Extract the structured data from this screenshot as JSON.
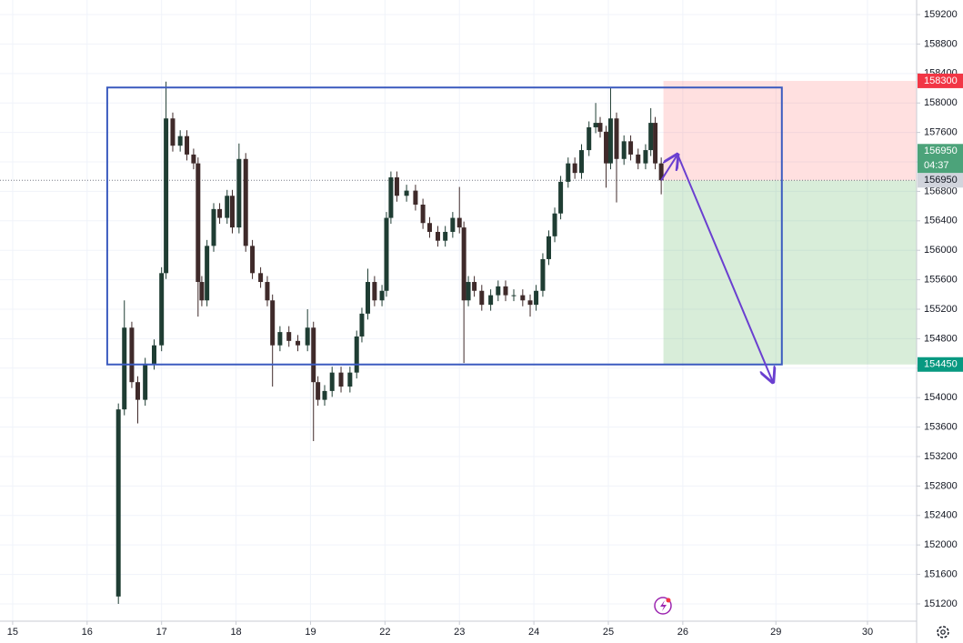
{
  "chart_data": {
    "type": "candlestick",
    "x": [
      1.42,
      1.5,
      1.6,
      1.68,
      1.78,
      1.9,
      2.0,
      2.06,
      2.15,
      2.25,
      2.34,
      2.43,
      2.49,
      2.54,
      2.61,
      2.7,
      2.78,
      2.88,
      2.95,
      3.04,
      3.13,
      3.22,
      3.33,
      3.42,
      3.49,
      3.59,
      3.71,
      3.83,
      3.96,
      4.04,
      4.1,
      4.19,
      4.29,
      4.41,
      4.53,
      4.62,
      4.69,
      4.77,
      4.86,
      4.96,
      5.02,
      5.08,
      5.16,
      5.29,
      5.41,
      5.51,
      5.6,
      5.71,
      5.81,
      5.91,
      6.0,
      6.06,
      6.12,
      6.2,
      6.3,
      6.42,
      6.52,
      6.62,
      6.73,
      6.85,
      6.95,
      7.03,
      7.12,
      7.2,
      7.28,
      7.36,
      7.46,
      7.55,
      7.64,
      7.74,
      7.83,
      7.89,
      7.97,
      8.03,
      8.11,
      8.21,
      8.3,
      8.4,
      8.5,
      8.57,
      8.63,
      8.71
    ],
    "open": [
      151300,
      153840,
      154950,
      154210,
      153970,
      154460,
      154710,
      155690,
      157790,
      157420,
      157550,
      157300,
      157180,
      155570,
      155320,
      156060,
      156560,
      156440,
      156740,
      156310,
      157240,
      156060,
      155690,
      155570,
      155320,
      154710,
      154890,
      154770,
      154710,
      154950,
      154210,
      153970,
      154090,
      154340,
      154150,
      154340,
      154830,
      155140,
      155570,
      155320,
      155450,
      156440,
      156990,
      156740,
      156810,
      156620,
      156370,
      156250,
      156130,
      156250,
      156440,
      156310,
      155320,
      155570,
      155450,
      155260,
      155390,
      155510,
      155390,
      155390,
      155320,
      155260,
      155450,
      155880,
      156190,
      156500,
      156930,
      157180,
      157050,
      157360,
      157670,
      157730,
      157610,
      157180,
      157790,
      157240,
      157480,
      157300,
      157180,
      157360,
      157730,
      157180
    ],
    "high": [
      153920,
      155320,
      155030,
      154290,
      154540,
      154790,
      155770,
      158290,
      157870,
      157630,
      157630,
      157380,
      157260,
      155650,
      156140,
      156640,
      156640,
      156820,
      156820,
      157450,
      157320,
      156140,
      155770,
      155650,
      155400,
      154970,
      154970,
      154850,
      155200,
      155030,
      154290,
      154170,
      154420,
      154420,
      154420,
      154910,
      155220,
      155750,
      155650,
      155530,
      156520,
      157070,
      157070,
      156890,
      156890,
      156700,
      156450,
      156330,
      156330,
      156520,
      156860,
      156390,
      155650,
      155650,
      155530,
      155470,
      155590,
      155590,
      155470,
      155470,
      155400,
      155530,
      155960,
      156270,
      156580,
      157010,
      157260,
      157260,
      157440,
      157750,
      158000,
      157810,
      157690,
      158200,
      157870,
      157560,
      157560,
      157380,
      157440,
      157930,
      157810,
      157260
    ],
    "low": [
      151200,
      153760,
      154130,
      153650,
      153890,
      154380,
      154630,
      155610,
      157340,
      157340,
      157220,
      157100,
      155100,
      155240,
      155240,
      155980,
      156360,
      156360,
      156230,
      156230,
      155980,
      155610,
      155490,
      155240,
      154150,
      154630,
      154690,
      154630,
      154630,
      153410,
      153890,
      153890,
      154010,
      154070,
      154070,
      154260,
      154750,
      155060,
      155240,
      155240,
      155370,
      156360,
      156660,
      156660,
      156540,
      156290,
      156170,
      156050,
      156050,
      156170,
      156230,
      154470,
      155240,
      155370,
      155180,
      155180,
      155310,
      155310,
      155310,
      155240,
      155100,
      155180,
      155370,
      155800,
      156110,
      156420,
      156850,
      156970,
      156970,
      157280,
      157590,
      157530,
      156850,
      157100,
      156650,
      157160,
      157220,
      157100,
      157100,
      157280,
      157100,
      156760
    ],
    "close": [
      153840,
      154950,
      154210,
      153970,
      154460,
      154710,
      155690,
      157790,
      157420,
      157550,
      157300,
      157180,
      155570,
      155320,
      156060,
      156560,
      156440,
      156740,
      156310,
      157240,
      156060,
      155690,
      155570,
      155320,
      154710,
      154890,
      154770,
      154710,
      154950,
      154210,
      153970,
      154090,
      154340,
      154150,
      154340,
      154830,
      155140,
      155570,
      155320,
      155450,
      156440,
      156990,
      156740,
      156810,
      156620,
      156370,
      156250,
      156130,
      156250,
      156440,
      156310,
      155320,
      155570,
      155450,
      155260,
      155390,
      155510,
      155390,
      155390,
      155320,
      155260,
      155450,
      155880,
      156190,
      156500,
      156930,
      157180,
      157050,
      157360,
      157670,
      157730,
      157610,
      157180,
      157790,
      157240,
      157480,
      157300,
      157180,
      157360,
      157730,
      157180,
      156950
    ],
    "up_color": "#1f3d33",
    "down_color": "#3f2a2a",
    "xlim": [
      -0.17,
      12.14
    ],
    "ylim": [
      150965,
      159398
    ],
    "xticks": [
      {
        "value": 0,
        "label": "15"
      },
      {
        "value": 1,
        "label": "16"
      },
      {
        "value": 2,
        "label": "17"
      },
      {
        "value": 3,
        "label": "18"
      },
      {
        "value": 4,
        "label": "19"
      },
      {
        "value": 5,
        "label": "22"
      },
      {
        "value": 6,
        "label": "23"
      },
      {
        "value": 7,
        "label": "24"
      },
      {
        "value": 8,
        "label": "25"
      },
      {
        "value": 9,
        "label": "26"
      },
      {
        "value": 10.25,
        "label": "29"
      },
      {
        "value": 11.48,
        "label": "30"
      }
    ],
    "yticks": [
      151200,
      151600,
      152000,
      152400,
      152800,
      153200,
      153600,
      154000,
      154400,
      154800,
      155200,
      155600,
      156000,
      156400,
      156800,
      157200,
      157600,
      158000,
      158400,
      158800,
      159200
    ],
    "grid": true,
    "countdown": "04:37",
    "drawings": {
      "rectangle": {
        "x": [
          1.27,
          10.33
        ],
        "y": [
          158210,
          154450
        ],
        "color": "#3b5bbf"
      },
      "position": {
        "x": 8.74,
        "entry": 156950,
        "stop": 158300,
        "target": 154450
      },
      "arrow": {
        "x": [
          8.71,
          8.93,
          10.21
        ],
        "y": [
          156950,
          157300,
          154210
        ],
        "color": "#6a3fd0"
      }
    }
  }
}
